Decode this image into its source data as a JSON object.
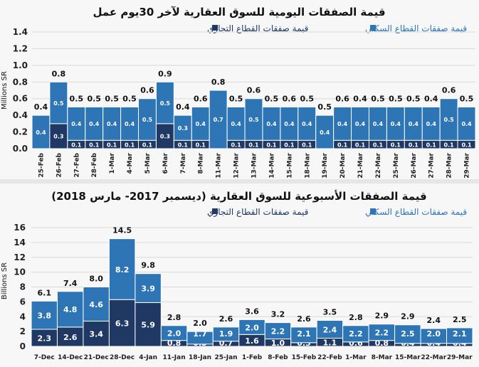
{
  "colors": {
    "residential": "#2e75b6",
    "commercial": "#1f3864",
    "grid": "#d9d9d9",
    "background": "#f7f7f7"
  },
  "chart_data": [
    {
      "type": "bar",
      "stacked": true,
      "title": "قيمة الصفقات اليومية للسوق العقارية لآخر 30يوم عمل",
      "ylabel": "Millions SR",
      "xlabel": "",
      "ylim": [
        0,
        1.4
      ],
      "yticks": [
        "0.0",
        "0.2",
        "0.4",
        "0.6",
        "0.8",
        "1.0",
        "1.2",
        "1.4"
      ],
      "grid": true,
      "legend": "top",
      "categories": [
        "25-Feb",
        "26-Feb",
        "27-Feb",
        "28-Feb",
        "1-Mar",
        "4-Mar",
        "5-Mar",
        "6-Mar",
        "7-Mar",
        "8-Mar",
        "11-Mar",
        "12-Mar",
        "13-Mar",
        "14-Mar",
        "15-Mar",
        "18-Mar",
        "19-Mar",
        "20-Mar",
        "21-Mar",
        "22-Mar",
        "25-Mar",
        "26-Mar",
        "27-Mar",
        "28-Mar",
        "29-Mar"
      ],
      "series": [
        {
          "name": "قيمة صفقات القطاع التجاري",
          "values": [
            0.0,
            0.3,
            0.1,
            0.1,
            0.1,
            0.1,
            0.1,
            0.3,
            0.1,
            0.1,
            0.0,
            0.1,
            0.1,
            0.1,
            0.1,
            0.1,
            0.0,
            0.1,
            0.1,
            0.1,
            0.1,
            0.1,
            0.1,
            0.1,
            0.1
          ]
        },
        {
          "name": "قيمة صفقات القطاع السكني",
          "values": [
            0.4,
            0.5,
            0.4,
            0.4,
            0.4,
            0.4,
            0.5,
            0.5,
            0.3,
            0.4,
            0.7,
            0.4,
            0.5,
            0.4,
            0.4,
            0.4,
            0.4,
            0.4,
            0.4,
            0.4,
            0.4,
            0.4,
            0.4,
            0.5,
            0.4
          ]
        }
      ],
      "totals": [
        0.4,
        0.8,
        0.5,
        0.5,
        0.5,
        0.5,
        0.6,
        0.9,
        0.4,
        0.6,
        0.8,
        0.5,
        0.6,
        0.5,
        0.6,
        0.5,
        0.5,
        0.6,
        0.4,
        0.5,
        0.5,
        0.5,
        0.4,
        0.6,
        0.5
      ],
      "precision": 1
    },
    {
      "type": "bar",
      "stacked": true,
      "title": "قيمة الصفقات الأسبوعية للسوق العقارية (ديسمبر 2017- مارس 2018)",
      "ylabel": "Billions SR",
      "xlabel": "",
      "ylim": [
        0,
        16
      ],
      "yticks": [
        "0",
        "2",
        "4",
        "6",
        "8",
        "10",
        "12",
        "14",
        "16"
      ],
      "grid": true,
      "legend": "top",
      "categories": [
        "7-Dec",
        "14-Dec",
        "21-Dec",
        "28-Dec",
        "4-Jan",
        "11-Jan",
        "18-Jan",
        "25-Jan",
        "1-Feb",
        "8-Feb",
        "15-Feb",
        "22-Feb",
        "1-Mar",
        "8-Mar",
        "15-Mar",
        "22-Mar",
        "29-Mar"
      ],
      "series": [
        {
          "name": "قيمة صفقات القطاع التجاري",
          "values": [
            2.3,
            2.6,
            3.4,
            6.3,
            5.9,
            0.8,
            0.3,
            0.7,
            1.6,
            1.0,
            0.5,
            1.1,
            0.6,
            0.8,
            0.4,
            0.4,
            0.4
          ]
        },
        {
          "name": "قيمة صفقات القطاع السكني",
          "values": [
            3.8,
            4.8,
            4.6,
            8.2,
            3.9,
            2.0,
            1.7,
            1.9,
            2.0,
            2.2,
            2.1,
            2.4,
            2.2,
            2.2,
            2.5,
            2.0,
            2.1
          ]
        }
      ],
      "totals": [
        6.1,
        7.4,
        8.0,
        14.5,
        9.8,
        2.8,
        2.0,
        2.6,
        3.6,
        3.2,
        2.6,
        3.5,
        2.8,
        2.9,
        2.9,
        2.4,
        2.5
      ],
      "precision": 1
    }
  ]
}
